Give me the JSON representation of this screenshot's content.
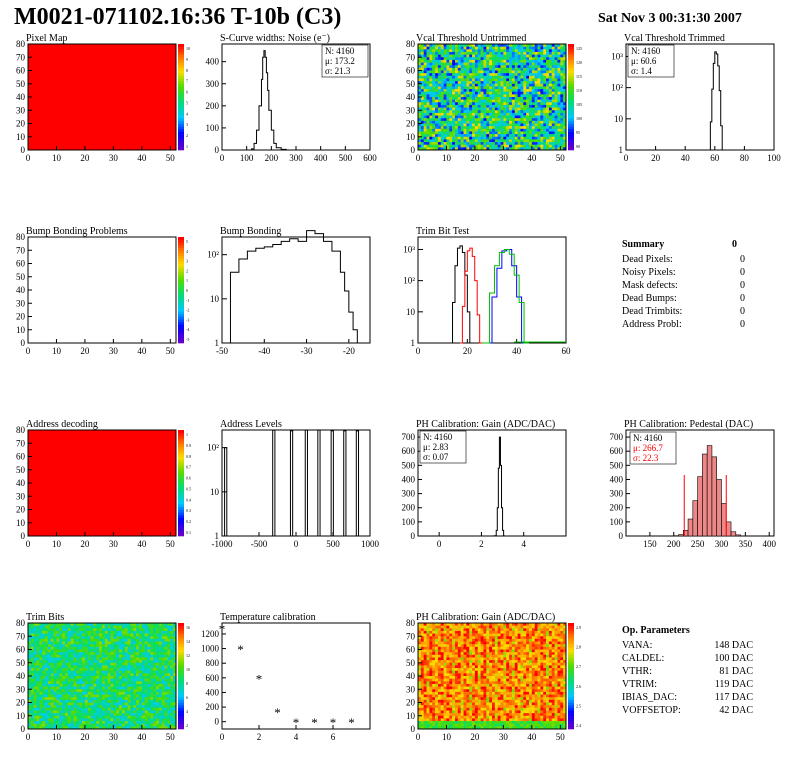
{
  "header": {
    "title": "M0021-071102.16:36 T-10b (C3)",
    "date": "Sat Nov  3 00:31:30 2007"
  },
  "colors": {
    "red": "#ff0000",
    "black": "#000000",
    "green": "#00c000",
    "blue": "#0000ff"
  },
  "chart_data": [
    {
      "id": "pixel-map",
      "type": "heatmap",
      "title": "Pixel Map",
      "xlim": [
        0,
        52
      ],
      "ylim": [
        0,
        80
      ],
      "x_ticks": [
        "0",
        "10",
        "20",
        "30",
        "40",
        "50"
      ],
      "y_ticks": [
        "0",
        "10",
        "20",
        "30",
        "40",
        "50",
        "60",
        "70",
        "80"
      ],
      "fill": "uniform red (all pixels at max)",
      "z_ticks": [
        "10",
        "9",
        "8",
        "7",
        "6",
        "5",
        "4",
        "3",
        "2",
        "1"
      ]
    },
    {
      "id": "scurve-widths",
      "type": "bar",
      "title": "S-Curve widths: Noise (e⁻)",
      "xlim": [
        0,
        600
      ],
      "ylim": [
        0,
        480
      ],
      "x_ticks": [
        "0",
        "100",
        "200",
        "300",
        "400",
        "500",
        "600"
      ],
      "y_ticks": [
        "0",
        "100",
        "200",
        "300",
        "400"
      ],
      "stats": [
        "N: 4160",
        "μ: 173.2",
        "σ: 21.3"
      ],
      "x": [
        100,
        120,
        130,
        140,
        150,
        160,
        165,
        170,
        175,
        180,
        185,
        190,
        200,
        210,
        220,
        240,
        260
      ],
      "values": [
        0,
        5,
        30,
        90,
        200,
        320,
        420,
        450,
        420,
        350,
        270,
        180,
        90,
        30,
        10,
        3,
        0
      ]
    },
    {
      "id": "vcal-untrimmed",
      "type": "heatmap",
      "title": "Vcal Threshold Untrimmed",
      "xlim": [
        0,
        52
      ],
      "ylim": [
        0,
        80
      ],
      "x_ticks": [
        "0",
        "10",
        "20",
        "30",
        "40",
        "50"
      ],
      "y_ticks": [
        "0",
        "10",
        "20",
        "30",
        "40",
        "50",
        "60",
        "70",
        "80"
      ],
      "z_ticks": [
        "125",
        "120",
        "115",
        "110",
        "105",
        "100",
        "95",
        "90"
      ]
    },
    {
      "id": "vcal-trimmed",
      "type": "bar",
      "title": "Vcal Threshold Trimmed",
      "log_y": true,
      "xlim": [
        0,
        100
      ],
      "x_ticks": [
        "0",
        "20",
        "40",
        "60",
        "80",
        "100"
      ],
      "y_ticks": [
        "1",
        "10",
        "10²",
        "10³"
      ],
      "stats": [
        "N: 4160",
        "μ: 60.6",
        "σ:  1.4"
      ],
      "x": [
        56,
        57,
        58,
        59,
        60,
        61,
        62,
        63,
        64,
        65
      ],
      "values": [
        1,
        8,
        90,
        600,
        1400,
        1200,
        500,
        80,
        6,
        1
      ]
    },
    {
      "id": "bump-bonding-problems",
      "type": "heatmap",
      "title": "Bump Bonding Problems",
      "xlim": [
        0,
        52
      ],
      "ylim": [
        0,
        80
      ],
      "x_ticks": [
        "0",
        "10",
        "20",
        "30",
        "40",
        "50"
      ],
      "y_ticks": [
        "0",
        "10",
        "20",
        "30",
        "40",
        "50",
        "60",
        "70",
        "80"
      ],
      "z_ticks": [
        "5",
        "4",
        "3",
        "2",
        "1",
        "0",
        "-1",
        "-2",
        "-3",
        "-4",
        "-5"
      ],
      "fill": "empty"
    },
    {
      "id": "bump-bonding",
      "type": "bar",
      "title": "Bump Bonding",
      "log_y": true,
      "xlim": [
        -50,
        -15
      ],
      "x_ticks": [
        "-50",
        "-40",
        "-30",
        "-20"
      ],
      "y_ticks": [
        "1",
        "10",
        "10²"
      ],
      "x": [
        -50,
        -48,
        -46,
        -44,
        -42,
        -40,
        -38,
        -36,
        -34,
        -32,
        -30,
        -28,
        -26,
        -24,
        -22,
        -21,
        -20,
        -19,
        -18
      ],
      "values": [
        1,
        40,
        80,
        120,
        140,
        150,
        170,
        200,
        230,
        200,
        350,
        300,
        200,
        120,
        40,
        15,
        5,
        2,
        1
      ]
    },
    {
      "id": "trim-bit-test",
      "type": "line",
      "title": "Trim Bit Test",
      "log_y": true,
      "xlim": [
        0,
        60
      ],
      "x_ticks": [
        "0",
        "20",
        "40",
        "60"
      ],
      "y_ticks": [
        "1",
        "10",
        "10²",
        "10³"
      ],
      "series": [
        {
          "color": "black",
          "x": [
            13,
            14,
            15,
            16,
            17,
            18,
            19,
            20,
            21
          ],
          "values": [
            1,
            20,
            300,
            1100,
            1300,
            800,
            150,
            10,
            1
          ]
        },
        {
          "color": "red",
          "x": [
            17,
            18,
            19,
            20,
            21,
            22,
            23,
            24,
            25
          ],
          "values": [
            1,
            15,
            200,
            900,
            1100,
            600,
            100,
            8,
            1
          ]
        },
        {
          "color": "blue",
          "x": [
            28,
            30,
            32,
            34,
            36,
            38,
            40,
            42
          ],
          "values": [
            1,
            30,
            250,
            900,
            1000,
            300,
            30,
            1
          ]
        },
        {
          "color": "green",
          "x": [
            26,
            29,
            31,
            33,
            35,
            37,
            39,
            41,
            43
          ],
          "values": [
            1,
            40,
            300,
            800,
            1000,
            700,
            150,
            20,
            1
          ]
        }
      ]
    },
    {
      "id": "address-decoding",
      "type": "heatmap",
      "title": "Address decoding",
      "xlim": [
        0,
        52
      ],
      "ylim": [
        0,
        80
      ],
      "x_ticks": [
        "0",
        "10",
        "20",
        "30",
        "40",
        "50"
      ],
      "y_ticks": [
        "0",
        "10",
        "20",
        "30",
        "40",
        "50",
        "60",
        "70",
        "80"
      ],
      "z_ticks": [
        "1",
        "0.9",
        "0.8",
        "0.7",
        "0.6",
        "0.5",
        "0.4",
        "0.3",
        "0.2",
        "0.1"
      ],
      "fill": "uniform red (all pixels at max)"
    },
    {
      "id": "address-levels",
      "type": "bar",
      "title": "Address Levels",
      "log_y": true,
      "xlim": [
        -1000,
        1000
      ],
      "x_ticks": [
        "-1000",
        "-500",
        "0",
        "500",
        "1000"
      ],
      "y_ticks": [
        "1",
        "10",
        "10²"
      ],
      "x": [
        -950,
        -300,
        -60,
        140,
        310,
        490,
        660,
        830
      ],
      "values": [
        100,
        250,
        240,
        250,
        250,
        240,
        240,
        240
      ]
    },
    {
      "id": "ph-gain",
      "type": "bar",
      "title": "PH Calibration: Gain (ADC/DAC)",
      "xlim": [
        -1,
        6
      ],
      "ylim": [
        0,
        750
      ],
      "x_ticks": [
        "0",
        "2",
        "4"
      ],
      "y_ticks": [
        "0",
        "100",
        "200",
        "300",
        "400",
        "500",
        "600",
        "700"
      ],
      "stats": [
        "N: 4160",
        "μ: 2.83",
        "σ: 0.07"
      ],
      "x": [
        2.6,
        2.7,
        2.75,
        2.8,
        2.85,
        2.9,
        2.95,
        3.0,
        3.05
      ],
      "values": [
        2,
        40,
        200,
        480,
        700,
        500,
        200,
        40,
        2
      ]
    },
    {
      "id": "ph-pedestal",
      "type": "bar",
      "title": "PH Calibration: Pedestal (DAC)",
      "xlim": [
        100,
        410
      ],
      "ylim": [
        0,
        750
      ],
      "x_ticks": [
        "150",
        "200",
        "250",
        "300",
        "350",
        "400"
      ],
      "y_ticks": [
        "0",
        "100",
        "200",
        "300",
        "400",
        "500",
        "600",
        "700"
      ],
      "stats": [
        "N: 4160",
        "μ: 266.7",
        "σ: 22.3"
      ],
      "x": [
        200,
        210,
        220,
        230,
        240,
        250,
        260,
        270,
        280,
        290,
        300,
        310,
        320,
        330,
        340
      ],
      "values": [
        2,
        10,
        40,
        120,
        250,
        420,
        580,
        640,
        560,
        400,
        230,
        100,
        30,
        8,
        1
      ],
      "cut_lines": [
        222,
        310
      ]
    },
    {
      "id": "trim-bits",
      "type": "heatmap",
      "title": "Trim Bits",
      "xlim": [
        0,
        52
      ],
      "ylim": [
        0,
        80
      ],
      "x_ticks": [
        "0",
        "10",
        "20",
        "30",
        "40",
        "50"
      ],
      "y_ticks": [
        "0",
        "10",
        "20",
        "30",
        "40",
        "50",
        "60",
        "70",
        "80"
      ],
      "z_ticks": [
        "16",
        "14",
        "12",
        "10",
        "8",
        "6",
        "4",
        "2"
      ]
    },
    {
      "id": "temperature-calibration",
      "type": "scatter",
      "title": "Temperature calibration",
      "xlim": [
        0,
        8
      ],
      "ylim": [
        -100,
        1350
      ],
      "x_ticks": [
        "0",
        "2",
        "4",
        "6"
      ],
      "y_ticks": [
        "0",
        "200",
        "400",
        "600",
        "800",
        "1000",
        "1200"
      ],
      "x": [
        0,
        1,
        2,
        3,
        4,
        5,
        6,
        7
      ],
      "values": [
        1260,
        980,
        580,
        120,
        -20,
        -20,
        -20,
        -20
      ]
    },
    {
      "id": "ph-gain-map",
      "type": "heatmap",
      "title": "PH Calibration: Gain (ADC/DAC)",
      "xlim": [
        0,
        52
      ],
      "ylim": [
        0,
        80
      ],
      "x_ticks": [
        "0",
        "10",
        "20",
        "30",
        "40",
        "50"
      ],
      "y_ticks": [
        "0",
        "10",
        "20",
        "30",
        "40",
        "50",
        "60",
        "70",
        "80"
      ],
      "z_ticks": [
        "2.9",
        "2.8",
        "2.7",
        "2.6",
        "2.5",
        "2.4"
      ]
    }
  ],
  "summary": {
    "title": "Summary",
    "total": "0",
    "rows": [
      {
        "label": "Dead Pixels:",
        "value": "0"
      },
      {
        "label": "Noisy Pixels:",
        "value": "0"
      },
      {
        "label": "Mask defects:",
        "value": "0"
      },
      {
        "label": "Dead Bumps:",
        "value": "0"
      },
      {
        "label": "Dead Trimbits:",
        "value": "0"
      },
      {
        "label": "Address Probl:",
        "value": "0"
      }
    ]
  },
  "op_parameters": {
    "title": "Op. Parameters",
    "rows": [
      {
        "label": "VANA:",
        "value": "148 DAC"
      },
      {
        "label": "CALDEL:",
        "value": "100 DAC"
      },
      {
        "label": "VTHR:",
        "value": "81 DAC"
      },
      {
        "label": "VTRIM:",
        "value": "119 DAC"
      },
      {
        "label": "IBIAS_DAC:",
        "value": "117 DAC"
      },
      {
        "label": "VOFFSETOP:",
        "value": "42 DAC"
      }
    ]
  }
}
